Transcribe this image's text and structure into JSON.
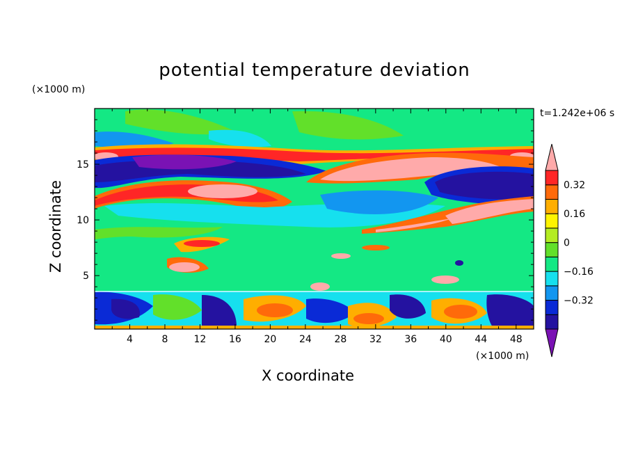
{
  "chart_data": {
    "type": "heatmap",
    "title": "potential temperature deviation",
    "xlabel": "X coordinate",
    "ylabel": "Z coordinate",
    "x_unit": "(×1000 m)",
    "y_unit": "(×1000 m)",
    "time_label": "t=1.242e+06 s",
    "xlim": [
      0,
      50
    ],
    "ylim": [
      0.2,
      20
    ],
    "x_ticks": [
      4,
      8,
      12,
      16,
      20,
      24,
      28,
      32,
      36,
      40,
      44,
      48
    ],
    "y_ticks": [
      5,
      10,
      15
    ],
    "colorbar": {
      "levels": [
        -0.48,
        -0.4,
        -0.32,
        -0.24,
        -0.16,
        -0.08,
        0,
        0.08,
        0.16,
        0.24,
        0.32,
        0.4
      ],
      "tick_values": [
        0.32,
        0.16,
        0,
        -0.16,
        -0.32
      ],
      "tick_labels": [
        "0.32",
        "0.16",
        "0",
        "−0.16",
        "−0.32"
      ],
      "colors": [
        "#7a12b4",
        "#2412a0",
        "#0a2ad6",
        "#1296f0",
        "#16e0ee",
        "#14e884",
        "#62e02a",
        "#b4ec22",
        "#fff400",
        "#ffae00",
        "#ff6a0a",
        "#ff2626",
        "#ffaaaa"
      ],
      "extend": "both"
    }
  }
}
